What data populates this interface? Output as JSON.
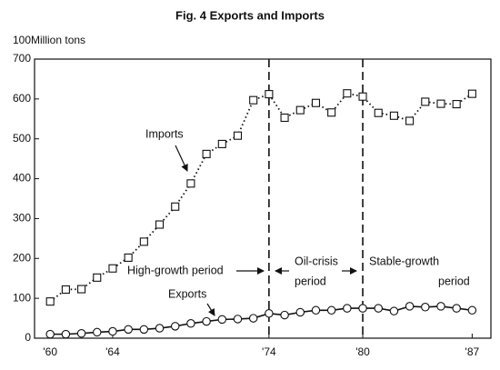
{
  "chart_data": {
    "type": "line",
    "title": "Fig. 4 Exports and Imports",
    "y_label": "100Million tons",
    "x": [
      60,
      61,
      62,
      63,
      64,
      65,
      66,
      67,
      68,
      69,
      70,
      71,
      72,
      73,
      74,
      75,
      76,
      77,
      78,
      79,
      80,
      81,
      82,
      83,
      84,
      85,
      86,
      87
    ],
    "series": [
      {
        "name": "Imports",
        "color": "#111",
        "marker": "square",
        "dash": "dotted",
        "values": [
          92,
          122,
          123,
          152,
          175,
          202,
          242,
          285,
          330,
          388,
          462,
          487,
          508,
          597,
          612,
          553,
          572,
          590,
          566,
          614,
          606,
          565,
          558,
          545,
          593,
          588,
          587,
          613
        ]
      },
      {
        "name": "Exports",
        "color": "#111",
        "marker": "circle",
        "dash": "solid",
        "values": [
          10,
          10,
          12,
          15,
          17,
          22,
          22,
          25,
          30,
          37,
          42,
          47,
          48,
          50,
          62,
          58,
          65,
          70,
          70,
          75,
          75,
          75,
          68,
          80,
          78,
          80,
          75,
          70
        ]
      }
    ],
    "xlim": [
      59,
      88.2
    ],
    "xticks": [
      {
        "value": 60,
        "label": "'60"
      },
      {
        "value": 64,
        "label": "'64"
      },
      {
        "value": 74,
        "label": "'74"
      },
      {
        "value": 80,
        "label": "'80"
      },
      {
        "value": 87,
        "label": "'87"
      }
    ],
    "ylim": [
      0,
      700
    ],
    "yticks": [
      0,
      100,
      200,
      300,
      400,
      500,
      600,
      700
    ],
    "vlines": [
      74,
      80
    ],
    "annotations": [
      "High-growth period",
      "Oil-crisis",
      "period",
      "Stable-growth",
      "period"
    ]
  }
}
